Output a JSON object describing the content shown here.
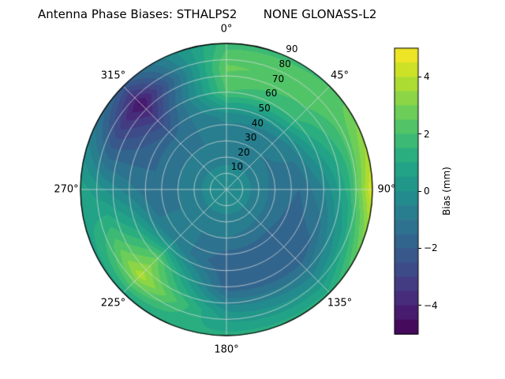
{
  "title": "Antenna Phase Biases: STHALPS2       NONE GLONASS-L2",
  "chart_data": {
    "type": "heatmap",
    "projection": "polar",
    "title": "Antenna Phase Biases: STHALPS2       NONE GLONASS-L2",
    "azimuth_labels": [
      {
        "label": "0°",
        "angle": 0
      },
      {
        "label": "45°",
        "angle": 45
      },
      {
        "label": "90°",
        "angle": 90
      },
      {
        "label": "135°",
        "angle": 135
      },
      {
        "label": "180°",
        "angle": 180
      },
      {
        "label": "225°",
        "angle": 225
      },
      {
        "label": "270°",
        "angle": 270
      },
      {
        "label": "315°",
        "angle": 315
      }
    ],
    "radial_ticks": [
      10,
      20,
      30,
      40,
      50,
      60,
      70,
      80,
      90
    ],
    "radial_label_angle_deg": 25,
    "levels": {
      "min": -5,
      "max": 5,
      "step": 0.5
    },
    "colorbar": {
      "label": "Bias (mm)",
      "ticks": [
        4,
        2,
        0,
        -2,
        -4
      ],
      "tick_labels": [
        "4",
        "2",
        "0",
        "−2",
        "−4"
      ]
    },
    "colormap": {
      "name": "viridis",
      "stops": [
        "#440154",
        "#482475",
        "#414487",
        "#355f8d",
        "#2a788e",
        "#21918c",
        "#22a884",
        "#44bf70",
        "#7ad151",
        "#bddf26",
        "#fde725"
      ]
    },
    "grid": {
      "azimuth_deg": [
        0,
        45,
        90,
        135,
        180,
        225,
        270,
        315
      ],
      "zenith_deg": [
        0,
        15,
        30,
        45,
        60,
        75,
        90
      ]
    },
    "bias_mm": [
      [
        0.0,
        -0.5,
        -1.0,
        -0.3,
        2.0,
        2.6,
        1.8
      ],
      [
        0.0,
        -0.5,
        -1.0,
        -0.5,
        1.5,
        2.2,
        2.0
      ],
      [
        0.0,
        -0.5,
        -1.2,
        -1.5,
        -0.5,
        1.2,
        4.6
      ],
      [
        0.0,
        -0.5,
        -1.2,
        -2.0,
        -2.0,
        -0.5,
        1.2
      ],
      [
        0.0,
        -0.5,
        -1.0,
        -2.0,
        -1.8,
        0.0,
        1.2
      ],
      [
        0.0,
        -0.5,
        -1.0,
        -0.5,
        2.5,
        3.8,
        0.8
      ],
      [
        0.0,
        -0.5,
        -1.0,
        -1.5,
        -0.8,
        0.0,
        0.8
      ],
      [
        0.0,
        -0.5,
        -1.0,
        -1.5,
        -3.0,
        -4.6,
        -2.2
      ]
    ],
    "grid_line_color": "#dedede",
    "spine_color": "#000000"
  }
}
